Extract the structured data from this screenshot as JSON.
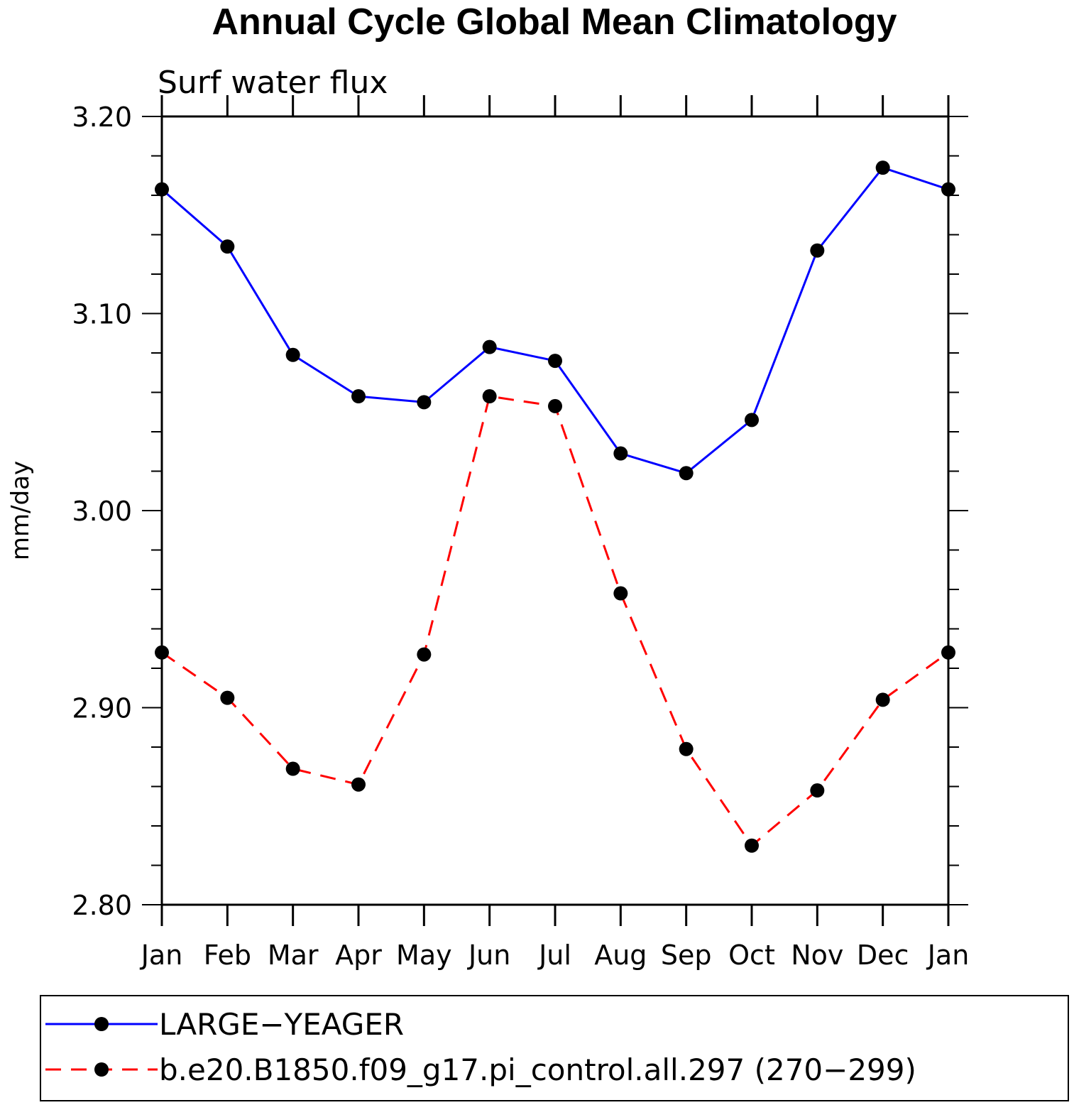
{
  "chart_data": {
    "type": "line",
    "title": "Annual Cycle Global Mean Climatology",
    "subtitle": "Surf water flux",
    "xlabel": "",
    "ylabel": "mm/day",
    "categories": [
      "Jan",
      "Feb",
      "Mar",
      "Apr",
      "May",
      "Jun",
      "Jul",
      "Aug",
      "Sep",
      "Oct",
      "Nov",
      "Dec",
      "Jan"
    ],
    "ylim": [
      2.8,
      3.2
    ],
    "yticks": [
      "2.80",
      "2.90",
      "3.00",
      "3.10",
      "3.20"
    ],
    "series": [
      {
        "name": "LARGE−YEAGER",
        "color": "#0000ff",
        "style": "solid",
        "values": [
          3.163,
          3.134,
          3.079,
          3.058,
          3.055,
          3.083,
          3.076,
          3.029,
          3.019,
          3.046,
          3.132,
          3.174,
          3.163
        ]
      },
      {
        "name": "b.e20.B1850.f09_g17.pi_control.all.297 (270−299)",
        "color": "#ff0000",
        "style": "dashed",
        "values": [
          2.928,
          2.905,
          2.869,
          2.861,
          2.927,
          3.058,
          3.053,
          2.958,
          2.879,
          2.83,
          2.858,
          2.904,
          2.928
        ]
      }
    ],
    "legend": "bottom",
    "grid": false
  }
}
